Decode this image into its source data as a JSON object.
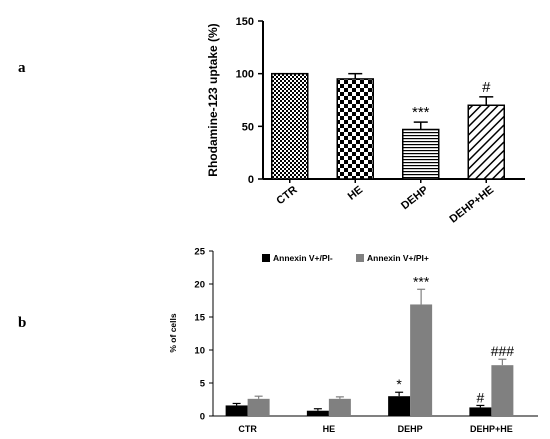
{
  "panels": {
    "a": {
      "letter": "a"
    },
    "b": {
      "letter": "b"
    }
  },
  "chart_data": [
    {
      "type": "bar",
      "ylabel": "Rhodamine-123 uptake (%)",
      "categories": [
        "CTR",
        "HE",
        "DEHP",
        "DEHP+HE"
      ],
      "values": [
        100,
        95,
        47,
        70
      ],
      "errors": [
        0,
        5,
        7,
        8
      ],
      "significance": [
        "",
        "",
        "***",
        "#"
      ],
      "yticks": [
        "0",
        "50",
        "100",
        "150"
      ],
      "ylim": [
        0,
        150
      ],
      "patterns": [
        "checker-fine",
        "checker-coarse",
        "horizontal-lines",
        "diagonal-lines"
      ],
      "grid": false
    },
    {
      "type": "bar",
      "ylabel": "% of cells",
      "categories": [
        "CTR",
        "HE",
        "DEHP",
        "DEHP+HE"
      ],
      "series": [
        {
          "name": "Annexin V+/PI-",
          "values": [
            1.6,
            0.8,
            3.0,
            1.3
          ],
          "errors": [
            0.3,
            0.3,
            0.6,
            0.3
          ],
          "significance": [
            "",
            "",
            "*",
            "#"
          ],
          "color": "#000000"
        },
        {
          "name": "Annexin V+/PI+",
          "values": [
            2.6,
            2.6,
            16.9,
            7.7
          ],
          "errors": [
            0.4,
            0.3,
            2.3,
            0.9
          ],
          "significance": [
            "",
            "",
            "***",
            "###"
          ],
          "color": "#808080"
        }
      ],
      "yticks": [
        "0",
        "5",
        "10",
        "15",
        "20",
        "25"
      ],
      "ylim": [
        0,
        25
      ],
      "legend_position": "top-left",
      "grid": false
    }
  ]
}
